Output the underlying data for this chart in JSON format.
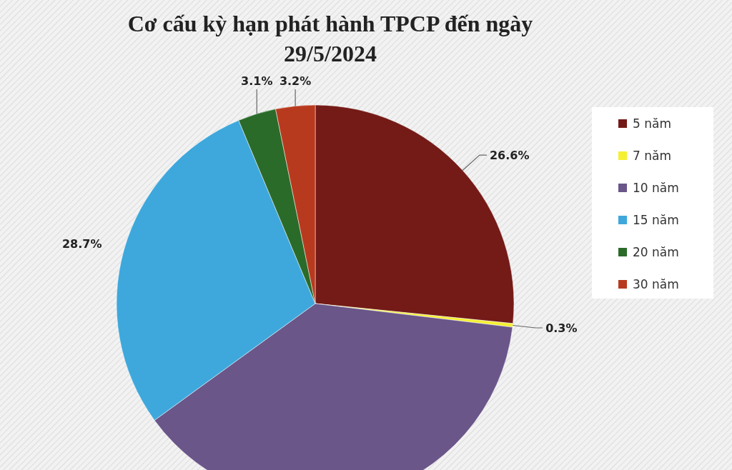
{
  "chart_data": {
    "type": "pie",
    "title": "Cơ cấu kỳ hạn phát hành TPCP đến ngày 29/5/2024",
    "categories": [
      "5 năm",
      "7 năm",
      "10 năm",
      "15 năm",
      "20 năm",
      "30 năm"
    ],
    "values": [
      26.6,
      0.3,
      38.1,
      28.7,
      3.1,
      3.2
    ],
    "colors": [
      "#741b17",
      "#f5f032",
      "#6a5689",
      "#3ea8dc",
      "#2a6b2a",
      "#b83a1e"
    ],
    "value_labels": [
      "26.6%",
      "0.3%",
      null,
      "28.7%",
      "3.1%",
      "3.2%"
    ],
    "legend": "right"
  }
}
